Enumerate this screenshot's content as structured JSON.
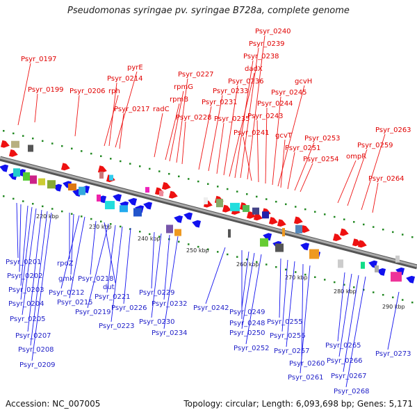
{
  "title": "Pseudomonas syringae pv. syringae B728a, complete genome",
  "accession": "Accession: NC_007005",
  "topology": "Topology: circular; Length: 6,093,698 bp; Genes: 5,171",
  "colors": {
    "forward": "#ee1111",
    "reverse": "#1111ee",
    "backbone": "#888888",
    "tick": "#228822"
  },
  "scale_ticks": [
    "220 kbp",
    "230 kbp",
    "240 kbp",
    "250 kbp",
    "260 kbp",
    "270 kbp",
    "280 kbp",
    "290 kbp"
  ],
  "forward_labels": [
    "Psyr_0197",
    "Psyr_0199",
    "Psyr_0206",
    "rph",
    "Psyr_0214",
    "pyrE",
    "Psyr_0217",
    "radC",
    "rpmB",
    "rpmG",
    "Psyr_0227",
    "Psyr_0228",
    "Psyr_0231",
    "Psyr_0233",
    "Psyr_0235",
    "Psyr_0236",
    "dadX",
    "Psyr_0238",
    "Psyr_0239",
    "Psyr_0240",
    "Psyr_0241",
    "Psyr_0243",
    "Psyr_0244",
    "Psyr_0245",
    "gcvH",
    "gcvT",
    "Psyr_0251",
    "Psyr_0253",
    "Psyr_0254",
    "ompR",
    "Psyr_0259",
    "Psyr_0263",
    "Psyr_0264"
  ],
  "reverse_labels": [
    "Psyr_0201",
    "Psyr_0202",
    "Psyr_0203",
    "Psyr_0204",
    "Psyr_0205",
    "Psyr_0207",
    "Psyr_0208",
    "Psyr_0209",
    "rpoZ",
    "gmk",
    "Psyr_0212",
    "Psyr_0215",
    "Psyr_0218",
    "dut",
    "Psyr_0219",
    "Psyr_0221",
    "Psyr_0223",
    "Psyr_0226",
    "Psyr_0229",
    "Psyr_0230",
    "Psyr_0232",
    "Psyr_0234",
    "Psyr_0242",
    "Psyr_0248",
    "Psyr_0249",
    "Psyr_0250",
    "Psyr_0252",
    "Psyr_0255",
    "Psyr_0256",
    "Psyr_0257",
    "Psyr_0260",
    "Psyr_0261",
    "Psyr_0265",
    "Psyr_0266",
    "Psyr_0267",
    "Psyr_0268",
    "Psyr_0273"
  ]
}
